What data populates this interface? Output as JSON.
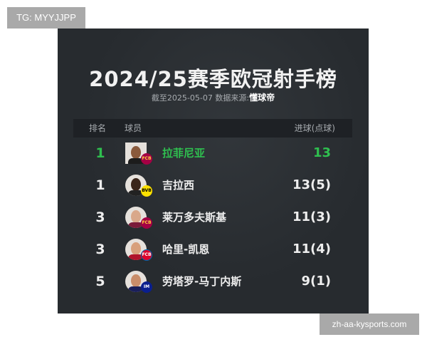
{
  "watermark_top": "TG: MYYJJPP",
  "watermark_bottom": "zh-aa-kysports.com",
  "card": {
    "title": "2024/25赛季欧冠射手榜",
    "subtitle_prefix": "截至2025-05-07 数据来源:",
    "source": "懂球帝",
    "columns": [
      "排名",
      "球员",
      "进球(点球)"
    ],
    "highlight_color": "#2fbf4f",
    "rows": [
      {
        "rank": "1",
        "name": "拉菲尼亚",
        "goals": "13",
        "club": "barcelona-badge",
        "highlight": true
      },
      {
        "rank": "1",
        "name": "吉拉西",
        "goals": "13(5)",
        "club": "dortmund-badge",
        "highlight": false
      },
      {
        "rank": "3",
        "name": "莱万多夫斯基",
        "goals": "11(3)",
        "club": "barcelona-badge",
        "highlight": false
      },
      {
        "rank": "3",
        "name": "哈里-凯恩",
        "goals": "11(4)",
        "club": "bayern-badge",
        "highlight": false
      },
      {
        "rank": "5",
        "name": "劳塔罗-马丁内斯",
        "goals": "9(1)",
        "club": "inter-badge",
        "highlight": false
      }
    ]
  }
}
